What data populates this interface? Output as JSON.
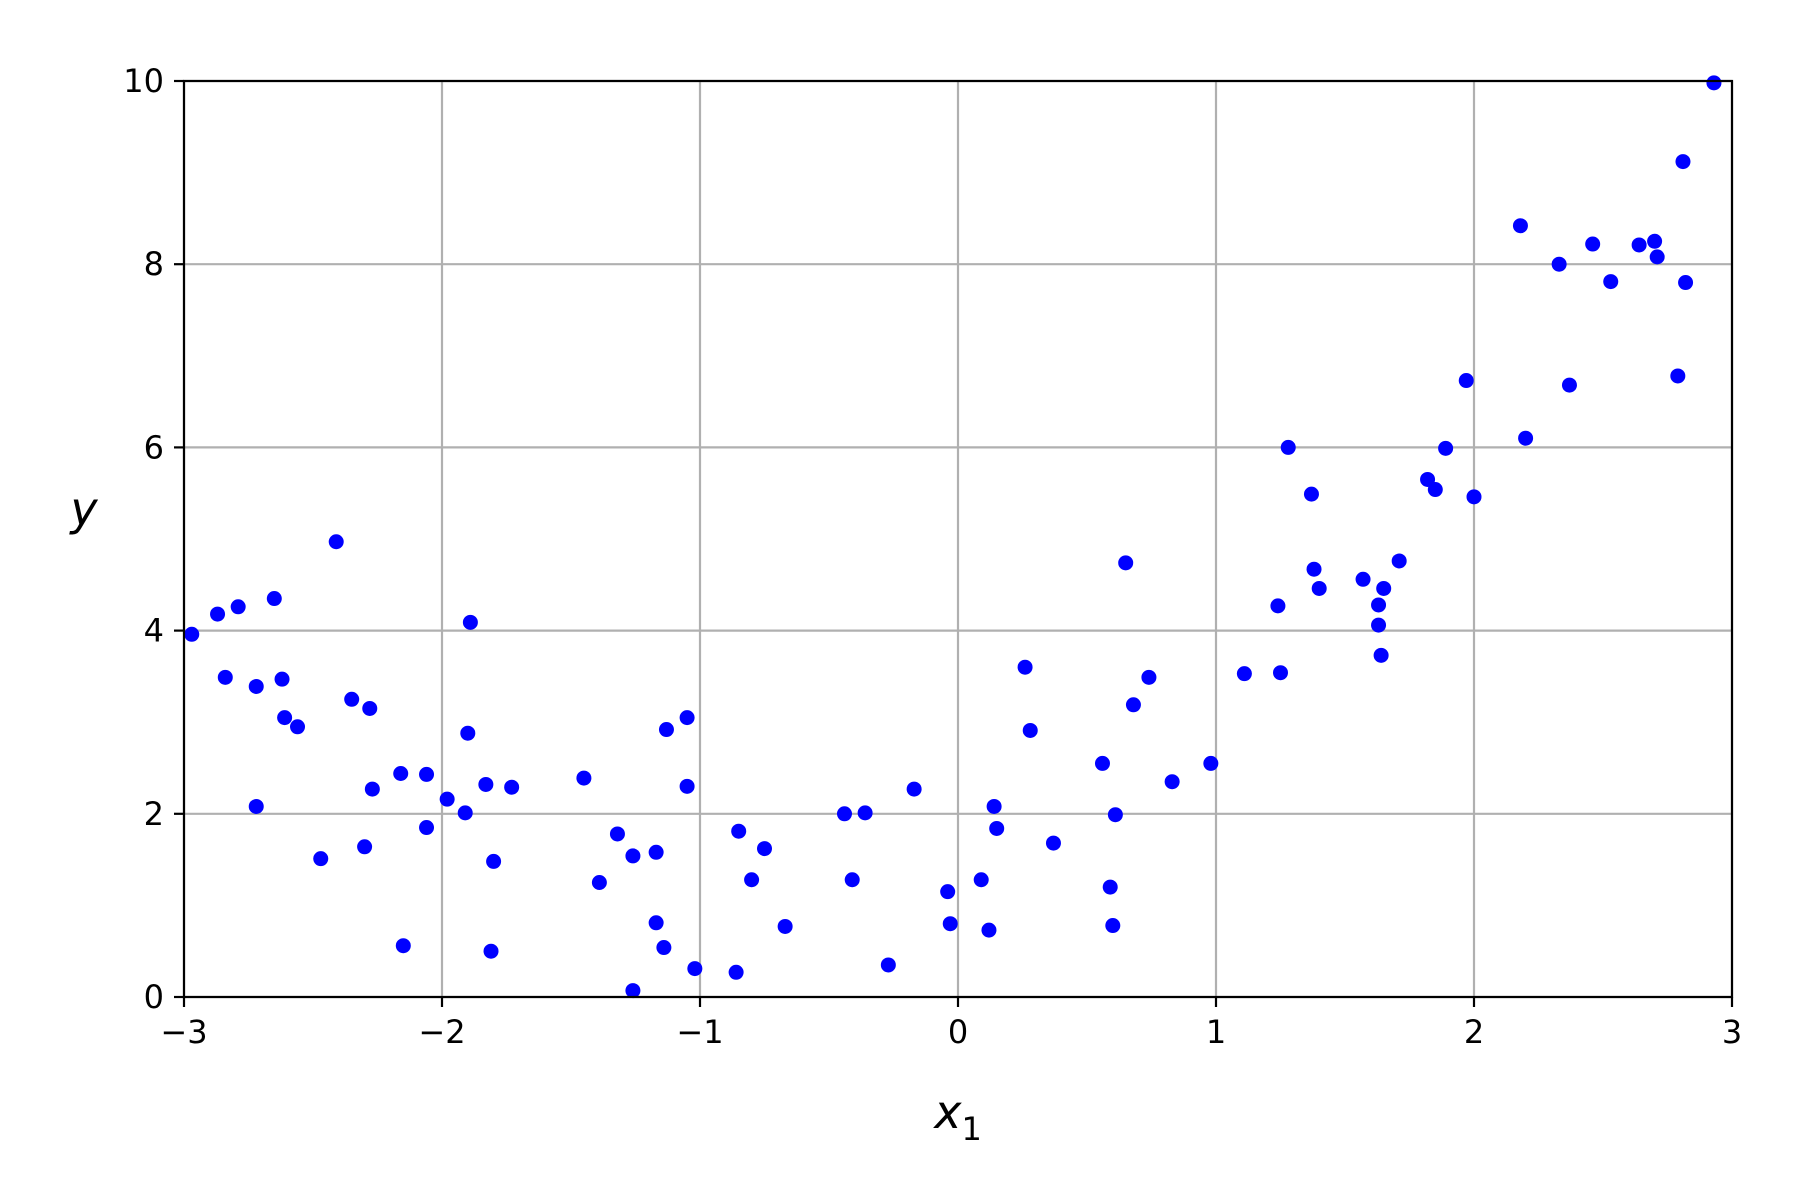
{
  "chart_data": {
    "type": "scatter",
    "xlabel": "x",
    "xlabel_subscript": "1",
    "ylabel": "y",
    "xlim": [
      -3,
      3
    ],
    "ylim": [
      0,
      10
    ],
    "xticks": [
      -3,
      -2,
      -1,
      0,
      1,
      2,
      3
    ],
    "xtick_labels": [
      "−3",
      "−2",
      "−1",
      "0",
      "1",
      "2",
      "3"
    ],
    "yticks": [
      0,
      2,
      4,
      6,
      8,
      10
    ],
    "ytick_labels": [
      "0",
      "2",
      "4",
      "6",
      "8",
      "10"
    ],
    "grid": true,
    "marker_color": "#0000ff",
    "series": [
      {
        "x": [
          -2.97,
          -2.87,
          -2.84,
          -2.79,
          -2.72,
          -2.72,
          -2.65,
          -2.62,
          -2.61,
          -2.56,
          -2.47,
          -2.41,
          -2.35,
          -2.3,
          -2.28,
          -2.27,
          -2.16,
          -2.15,
          -2.06,
          -2.06,
          -1.98,
          -1.91,
          -1.9,
          -1.89,
          -1.83,
          -1.81,
          -1.8,
          -1.73,
          -1.45,
          -1.39,
          -1.32,
          -1.26,
          -1.26,
          -1.17,
          -1.17,
          -1.14,
          -1.13,
          -1.05,
          -1.05,
          -1.02,
          -0.86,
          -0.85,
          -0.8,
          -0.75,
          -0.67,
          -0.44,
          -0.41,
          -0.36,
          -0.27,
          -0.17,
          -0.04,
          -0.03,
          0.09,
          0.12,
          0.14,
          0.15,
          0.26,
          0.28,
          0.37,
          0.56,
          0.59,
          0.6,
          0.61,
          0.65,
          0.68,
          0.74,
          0.83,
          0.98,
          1.11,
          1.24,
          1.25,
          1.28,
          1.37,
          1.38,
          1.4,
          1.57,
          1.63,
          1.63,
          1.64,
          1.65,
          1.71,
          1.82,
          1.85,
          1.89,
          1.97,
          2.0,
          2.18,
          2.2,
          2.33,
          2.37,
          2.46,
          2.53,
          2.64,
          2.7,
          2.71,
          2.79,
          2.81,
          2.82,
          2.93
        ],
        "y": [
          3.96,
          4.18,
          3.49,
          4.26,
          2.08,
          3.39,
          4.35,
          3.47,
          3.05,
          2.95,
          1.51,
          4.97,
          3.25,
          1.64,
          3.15,
          2.27,
          2.44,
          0.56,
          2.43,
          1.85,
          2.16,
          2.01,
          2.88,
          4.09,
          2.32,
          0.5,
          1.48,
          2.29,
          2.39,
          1.25,
          1.78,
          1.54,
          0.07,
          0.81,
          1.58,
          0.54,
          2.92,
          2.3,
          3.05,
          0.31,
          0.27,
          1.81,
          1.28,
          1.62,
          0.77,
          2.0,
          1.28,
          2.01,
          0.35,
          2.27,
          1.15,
          0.8,
          1.28,
          0.73,
          2.08,
          1.84,
          3.6,
          2.91,
          1.68,
          2.55,
          1.2,
          0.78,
          1.99,
          4.74,
          3.19,
          3.49,
          2.35,
          2.55,
          3.53,
          4.27,
          3.54,
          6.0,
          5.49,
          4.67,
          4.46,
          4.56,
          4.28,
          4.06,
          3.73,
          4.46,
          4.76,
          5.65,
          5.54,
          5.99,
          6.73,
          5.46,
          8.42,
          6.1,
          8.0,
          6.68,
          8.22,
          7.81,
          8.21,
          8.25,
          8.08,
          6.78,
          9.12,
          7.8,
          9.98
        ]
      }
    ]
  }
}
